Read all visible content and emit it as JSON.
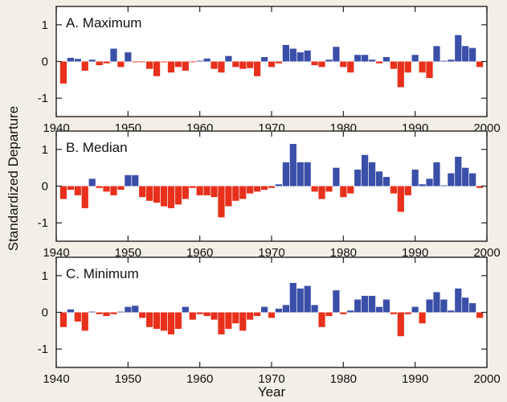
{
  "chart_data": {
    "type": "bar",
    "xlabel": "Year",
    "ylabel": "Standardized Departure",
    "xlim": [
      1940,
      2000
    ],
    "ylim": [
      -1.5,
      1.5
    ],
    "xticks": [
      "1940",
      "1950",
      "1960",
      "1970",
      "1980",
      "1990",
      "2000"
    ],
    "yticks": [
      "-1",
      "0",
      "1"
    ],
    "positive_color": "#3a4fa8",
    "negative_color": "#e8301c",
    "years": [
      1941,
      1942,
      1943,
      1944,
      1945,
      1946,
      1947,
      1948,
      1949,
      1950,
      1951,
      1952,
      1953,
      1954,
      1955,
      1956,
      1957,
      1958,
      1959,
      1960,
      1961,
      1962,
      1963,
      1964,
      1965,
      1966,
      1967,
      1968,
      1969,
      1970,
      1971,
      1972,
      1973,
      1974,
      1975,
      1976,
      1977,
      1978,
      1979,
      1980,
      1981,
      1982,
      1983,
      1984,
      1985,
      1986,
      1987,
      1988,
      1989,
      1990,
      1991,
      1992,
      1993,
      1994,
      1995,
      1996,
      1997,
      1998,
      1999
    ],
    "panels": [
      {
        "title": "A. Maximum",
        "values": [
          -0.6,
          0.1,
          0.07,
          -0.25,
          0.05,
          -0.1,
          -0.05,
          0.35,
          -0.15,
          0.25,
          -0.02,
          -0.02,
          -0.2,
          -0.4,
          -0.02,
          -0.3,
          -0.15,
          -0.25,
          -0.02,
          0.02,
          0.08,
          -0.2,
          -0.3,
          0.15,
          -0.15,
          -0.2,
          -0.18,
          -0.4,
          0.12,
          -0.15,
          -0.05,
          0.45,
          0.35,
          0.25,
          0.3,
          -0.1,
          -0.15,
          0.05,
          0.4,
          -0.15,
          -0.3,
          0.18,
          0.18,
          0.05,
          -0.05,
          0.12,
          -0.2,
          -0.7,
          -0.3,
          0.18,
          -0.3,
          -0.45,
          0.42,
          0.02,
          0.05,
          0.72,
          0.42,
          0.37,
          -0.15
        ]
      },
      {
        "title": "B. Median",
        "values": [
          -0.35,
          -0.1,
          -0.25,
          -0.6,
          0.2,
          -0.05,
          -0.15,
          -0.25,
          -0.1,
          0.3,
          0.3,
          -0.3,
          -0.4,
          -0.45,
          -0.55,
          -0.6,
          -0.5,
          -0.35,
          -0.05,
          -0.25,
          -0.25,
          -0.3,
          -0.85,
          -0.55,
          -0.4,
          -0.35,
          -0.2,
          -0.15,
          -0.1,
          -0.05,
          0.05,
          0.65,
          1.15,
          0.65,
          0.65,
          -0.15,
          -0.35,
          -0.15,
          0.5,
          -0.3,
          -0.2,
          0.45,
          0.85,
          0.65,
          0.4,
          0.25,
          -0.2,
          -0.7,
          -0.25,
          0.45,
          0.05,
          0.2,
          0.65,
          0.02,
          0.35,
          0.8,
          0.5,
          0.35,
          -0.05
        ]
      },
      {
        "title": "C. Minimum",
        "values": [
          -0.4,
          0.08,
          -0.25,
          -0.5,
          0.02,
          -0.05,
          -0.1,
          -0.05,
          0.02,
          0.15,
          0.18,
          -0.15,
          -0.4,
          -0.45,
          -0.5,
          -0.6,
          -0.45,
          0.15,
          -0.2,
          -0.05,
          -0.1,
          -0.2,
          -0.6,
          -0.45,
          -0.3,
          -0.5,
          -0.2,
          -0.1,
          0.15,
          -0.15,
          0.1,
          0.2,
          0.8,
          0.65,
          0.72,
          0.2,
          -0.4,
          -0.1,
          0.6,
          -0.05,
          0.05,
          0.35,
          0.45,
          0.45,
          0.15,
          0.35,
          -0.05,
          -0.65,
          -0.05,
          0.15,
          -0.3,
          0.35,
          0.55,
          0.35,
          0.05,
          0.65,
          0.4,
          0.25,
          -0.15
        ]
      }
    ]
  }
}
